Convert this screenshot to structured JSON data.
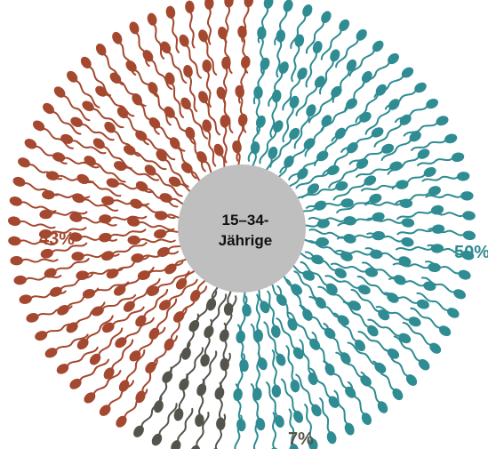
{
  "chart_data": {
    "type": "pie",
    "center_label": [
      "15–34-",
      "Jährige"
    ],
    "slices": [
      {
        "label": "50%",
        "value": 50,
        "color": "#2e8c92"
      },
      {
        "label": "7%",
        "value": 7,
        "color": "#55544c"
      },
      {
        "label": "43%",
        "value": 43,
        "color": "#a4482f"
      }
    ],
    "center_color": "#bfbfbf"
  }
}
